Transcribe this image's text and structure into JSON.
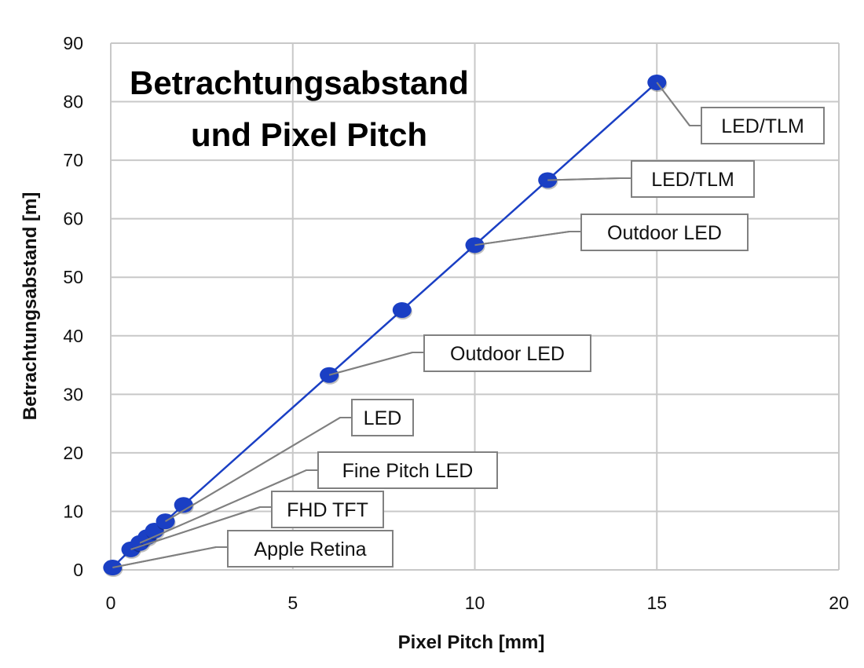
{
  "chart_data": {
    "type": "scatter",
    "title": [
      "Betrachtungsabstand",
      "und Pixel Pitch"
    ],
    "xlabel": "Pixel Pitch [mm]",
    "ylabel": "Betrachtungsabstand [m]",
    "xlim": [
      0,
      20
    ],
    "ylim": [
      0,
      90
    ],
    "xticks": [
      0,
      5,
      10,
      15,
      20
    ],
    "yticks": [
      0,
      10,
      20,
      30,
      40,
      50,
      60,
      70,
      80,
      90
    ],
    "grid": true,
    "series_color": "#1a3fc4",
    "points": [
      {
        "x": 0.05,
        "y": 0.4,
        "label": "Apple Retina"
      },
      {
        "x": 0.55,
        "y": 3.5,
        "label": "FHD TFT"
      },
      {
        "x": 0.8,
        "y": 4.6,
        "label": "Fine Pitch LED"
      },
      {
        "x": 1.0,
        "y": 5.6,
        "label": ""
      },
      {
        "x": 1.2,
        "y": 6.7,
        "label": ""
      },
      {
        "x": 1.5,
        "y": 8.3,
        "label": "LED"
      },
      {
        "x": 2,
        "y": 11.1,
        "label": ""
      },
      {
        "x": 6,
        "y": 33.3,
        "label": "Outdoor LED"
      },
      {
        "x": 8,
        "y": 44.4,
        "label": ""
      },
      {
        "x": 10,
        "y": 55.5,
        "label": "Outdoor LED"
      },
      {
        "x": 12,
        "y": 66.6,
        "label": "LED/TLM"
      },
      {
        "x": 15,
        "y": 83.3,
        "label": "LED/TLM"
      }
    ]
  }
}
